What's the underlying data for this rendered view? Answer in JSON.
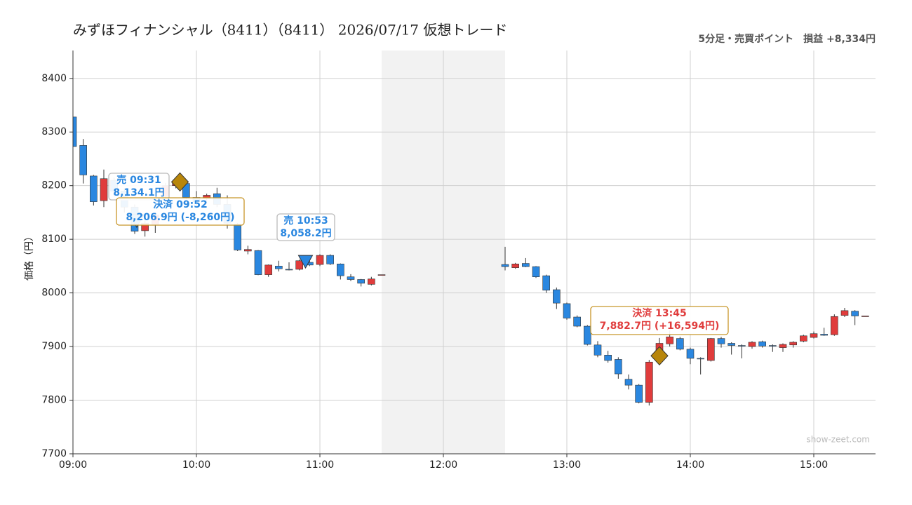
{
  "header": {
    "title": "みずほフィナンシャル（8411）（8411） 2026/07/17 仮想トレード",
    "summary": "5分足・売買ポイント　損益 +8,334円"
  },
  "chart_data": {
    "type": "candlestick",
    "y_label": "価格（円）",
    "x": [
      "09:00",
      "09:05",
      "09:10",
      "09:15",
      "09:20",
      "09:25",
      "09:30",
      "09:35",
      "09:40",
      "09:45",
      "09:50",
      "09:55",
      "10:00",
      "10:05",
      "10:10",
      "10:15",
      "10:20",
      "10:25",
      "10:30",
      "10:35",
      "10:40",
      "10:45",
      "10:50",
      "10:55",
      "11:00",
      "11:05",
      "11:10",
      "11:15",
      "11:20",
      "11:25",
      "11:30",
      "12:30",
      "12:35",
      "12:40",
      "12:45",
      "12:50",
      "12:55",
      "13:00",
      "13:05",
      "13:10",
      "13:15",
      "13:20",
      "13:25",
      "13:30",
      "13:35",
      "13:40",
      "13:45",
      "13:50",
      "13:55",
      "14:00",
      "14:05",
      "14:10",
      "14:15",
      "14:20",
      "14:25",
      "14:30",
      "14:35",
      "14:40",
      "14:45",
      "14:50",
      "14:55",
      "15:00",
      "15:05",
      "15:10",
      "15:15",
      "15:20",
      "15:25"
    ],
    "open": [
      8328,
      8275,
      8218,
      8172,
      8210,
      8190,
      8160,
      8116,
      8128,
      8180,
      8200,
      8204,
      8178,
      8176,
      8185,
      8165,
      8128,
      8078,
      8079,
      8034,
      8050,
      8044,
      8044,
      8057,
      8053,
      8070,
      8054,
      8030,
      8025,
      8016,
      8034,
      8053,
      8047,
      8055,
      8049,
      8032,
      8006,
      7980,
      7955,
      7938,
      7903,
      7884,
      7876,
      7839,
      7828,
      7796,
      7893,
      7905,
      7915,
      7895,
      7878,
      7874,
      7915,
      7906,
      7902,
      7900,
      7909,
      7902,
      7898,
      7903,
      7910,
      7917,
      7923,
      7922,
      7958,
      7966,
      7957
    ],
    "high": [
      8335,
      8287,
      8220,
      8230,
      8215,
      8195,
      8165,
      8135,
      8150,
      8205,
      8212,
      8210,
      8190,
      8185,
      8196,
      8182,
      8130,
      8088,
      8080,
      8053,
      8060,
      8057,
      8062,
      8060,
      8072,
      8072,
      8055,
      8035,
      8026,
      8030,
      8034,
      8086,
      8056,
      8065,
      8050,
      8034,
      8010,
      7982,
      7958,
      7940,
      7910,
      7892,
      7880,
      7848,
      7830,
      7875,
      7916,
      7930,
      7918,
      7898,
      7880,
      7916,
      7918,
      7908,
      7904,
      7910,
      7911,
      7904,
      7906,
      7910,
      7922,
      7928,
      7935,
      7960,
      7972,
      7968,
      7957
    ],
    "low": [
      8272,
      8204,
      8163,
      8160,
      8180,
      8150,
      8110,
      8105,
      8112,
      8175,
      8195,
      8175,
      8160,
      8172,
      8160,
      8120,
      8078,
      8072,
      8033,
      8030,
      8040,
      8042,
      8042,
      8050,
      8050,
      8052,
      8025,
      8022,
      8012,
      8014,
      8034,
      8042,
      8045,
      8048,
      8028,
      8000,
      7970,
      7950,
      7936,
      7902,
      7880,
      7870,
      7840,
      7820,
      7794,
      7790,
      7880,
      7900,
      7893,
      7867,
      7848,
      7872,
      7898,
      7885,
      7878,
      7896,
      7898,
      7890,
      7890,
      7898,
      7908,
      7915,
      7920,
      7920,
      7955,
      7940,
      7957
    ],
    "close": [
      8273,
      8220,
      8170,
      8213,
      8190,
      8160,
      8115,
      8130,
      8145,
      8200,
      8207,
      8178,
      8170,
      8182,
      8165,
      8130,
      8080,
      8081,
      8034,
      8052,
      8045,
      8043,
      8060,
      8052,
      8070,
      8054,
      8032,
      8025,
      8018,
      8026,
      8034,
      8049,
      8054,
      8049,
      8030,
      8005,
      7981,
      7953,
      7938,
      7904,
      7884,
      7874,
      7849,
      7828,
      7796,
      7871,
      7906,
      7918,
      7895,
      7878,
      7877,
      7915,
      7905,
      7902,
      7901,
      7908,
      7901,
      7901,
      7904,
      7908,
      7920,
      7924,
      7921,
      7956,
      7967,
      7957,
      7957
    ],
    "up_color": "#e03c3c",
    "down_color": "#2a87e0",
    "xlim": [
      "09:00",
      "15:30"
    ],
    "xticks": [
      "09:00",
      "10:00",
      "11:00",
      "12:00",
      "13:00",
      "14:00",
      "15:00"
    ],
    "ylim": [
      7700,
      8452
    ],
    "yticks": [
      7700,
      7800,
      7900,
      8000,
      8100,
      8200,
      8300,
      8400
    ],
    "grid": true,
    "shaded_ranges": [
      [
        "11:30",
        "12:30"
      ]
    ],
    "trades": [
      {
        "time": "09:31",
        "price": 8134.1,
        "marker": "triangle",
        "marker_color": "#2a87e0",
        "text_color": "#2a87e0",
        "label": [
          "売 09:31",
          "8,134.1円"
        ]
      },
      {
        "time": "09:52",
        "price": 8206.9,
        "marker": "diamond",
        "marker_color": "#b8860b",
        "text_color": "#2a87e0",
        "label": [
          "決済 09:52",
          "8,206.9円 (-8,260円)"
        ]
      },
      {
        "time": "10:53",
        "price": 8058.2,
        "marker": "triangle",
        "marker_color": "#2a87e0",
        "text_color": "#2a87e0",
        "label": [
          "売 10:53",
          "8,058.2円"
        ]
      },
      {
        "time": "13:45",
        "price": 7882.7,
        "marker": "diamond",
        "marker_color": "#b8860b",
        "text_color": "#e03c3c",
        "label": [
          "決済 13:45",
          "7,882.7円 (+16,594円)"
        ]
      }
    ],
    "watermark": "show-zeet.com"
  }
}
